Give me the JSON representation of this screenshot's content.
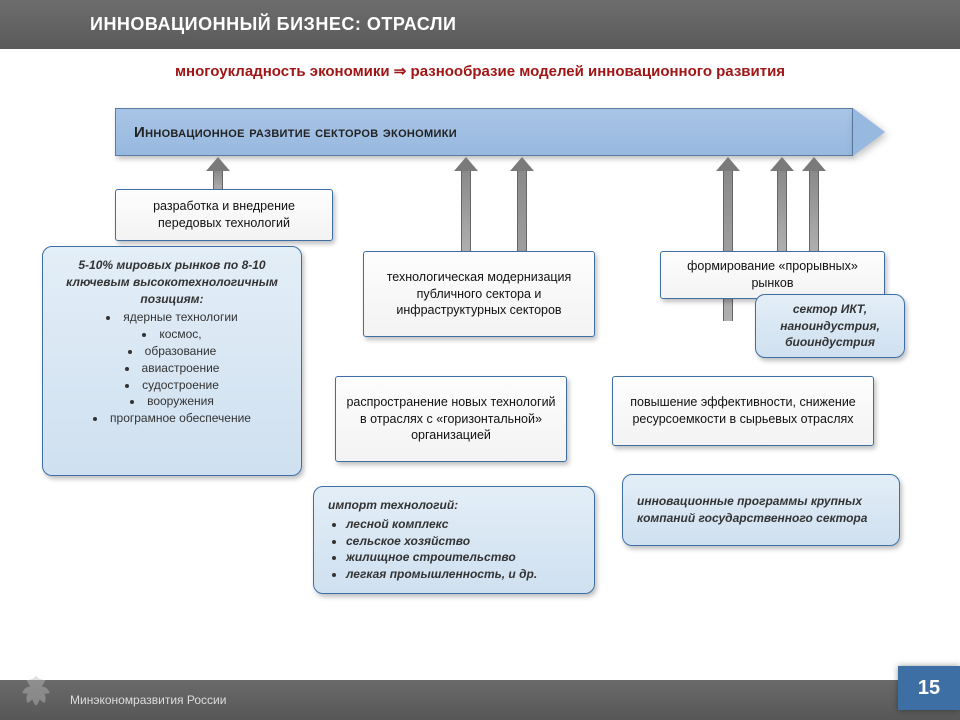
{
  "colors": {
    "header_bg_top": "#6d6d6d",
    "header_bg_bot": "#5a5a5a",
    "subtitle": "#a01515",
    "banner_bg_top": "#a9c5e6",
    "banner_bg_bot": "#97b8df",
    "box_border": "#3d6fa5",
    "white_box_bg": "#f8f8f8",
    "blue_box_bg_top": "#e3eef7",
    "blue_box_bg_bot": "#cfe0f0",
    "arrow_gray": "#7a7a7a",
    "footer_bg": "#606060",
    "pagenum_bg": "#3d6fa5"
  },
  "header": {
    "title": "ИННОВАЦИОННЫЙ БИЗНЕС: ОТРАСЛИ"
  },
  "subtitle": {
    "left": "многоукладность экономики",
    "arrow": "⇒",
    "right": "разнообразие моделей инновационного развития"
  },
  "banner": {
    "text": "Инновационное развитие секторов экономики"
  },
  "boxes": {
    "w1": "разработка и внедрение передовых технологий",
    "w2": "технологическая модернизация публичного сектора и инфраструктурных секторов",
    "w3": "формирование «прорывных» рынков",
    "w4": "распространение новых технологий в отраслях с «горизонтальной» организацией",
    "w5": "повышение эффективности, снижение ресурсоемкости в сырьевых отраслях"
  },
  "blue": {
    "b1_head": "5-10% мировых рынков по 8-10 ключевым высокотехнологичным позициям:",
    "b1_items": [
      "ядерные технологии",
      "космос,",
      "образование",
      "авиастроение",
      "судостроение",
      "вооружения",
      "програмное обеспечение"
    ],
    "b2_head": "импорт технологий:",
    "b2_items": [
      "лесной комплекс",
      "сельское хозяйство",
      "жилищное строительство",
      "легкая промышленность, и др."
    ],
    "b3": "сектор ИКТ, наноиндустрия, биоиндустрия",
    "b4": "инновационные программы крупных компаний государственного сектора"
  },
  "footer": {
    "org": "Минэкономразвития России",
    "page": "15"
  }
}
